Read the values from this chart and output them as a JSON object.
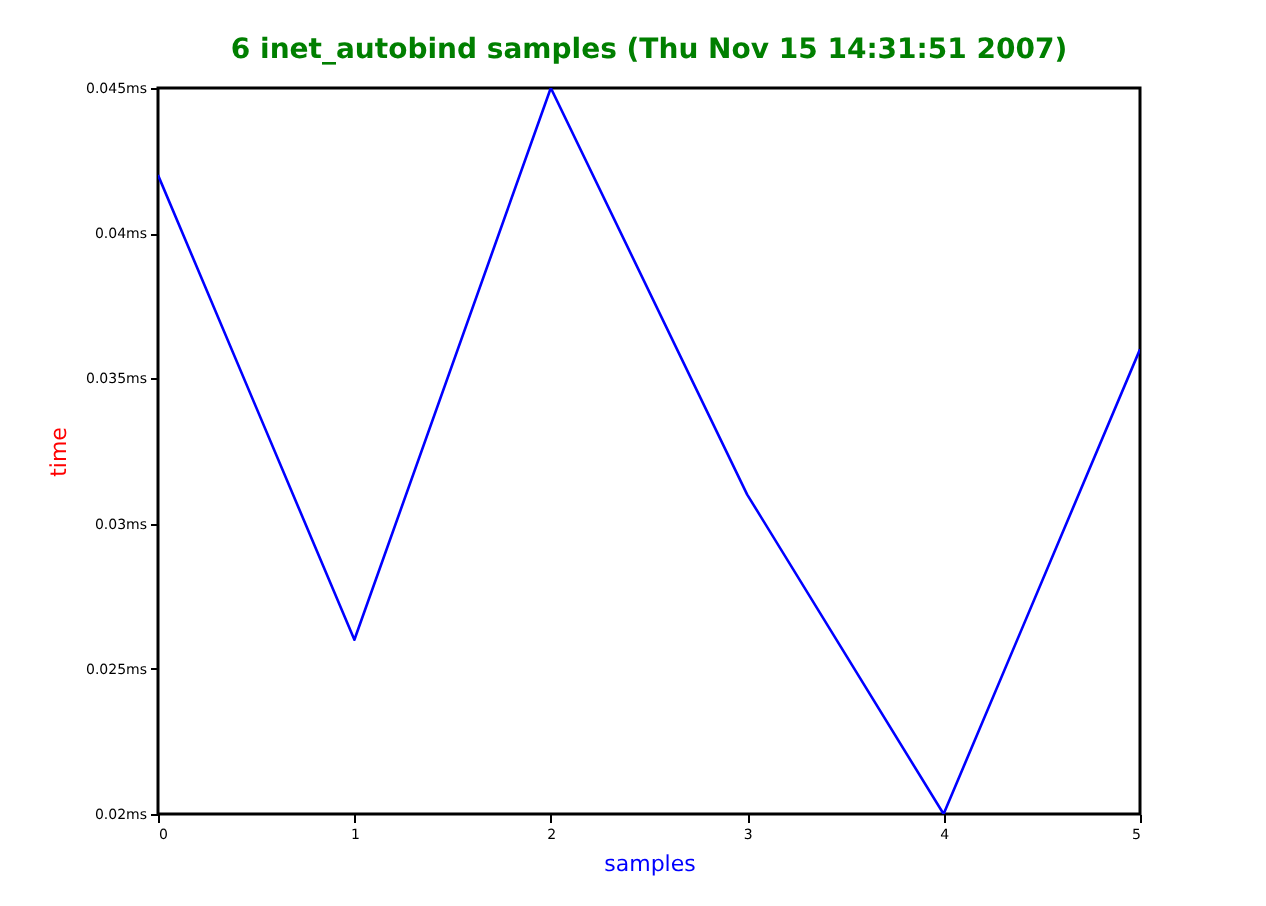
{
  "chart_data": {
    "type": "line",
    "title": "6 inet_autobind samples (Thu Nov 15 14:31:51 2007)",
    "xlabel": "samples",
    "ylabel": "time",
    "x": [
      0,
      1,
      2,
      3,
      4,
      5
    ],
    "series": [
      {
        "color": "#0000ff",
        "values": [
          0.042,
          0.026,
          0.045,
          0.031,
          0.02,
          0.036
        ]
      }
    ],
    "xlim": [
      0,
      5
    ],
    "xticks": [
      0,
      1,
      2,
      3,
      4,
      5
    ],
    "ylim": [
      0.02,
      0.045
    ],
    "yticks": [
      {
        "value": 0.02,
        "label": "0.02ms"
      },
      {
        "value": 0.025,
        "label": "0.025ms"
      },
      {
        "value": 0.03,
        "label": "0.03ms"
      },
      {
        "value": 0.035,
        "label": "0.035ms"
      },
      {
        "value": 0.04,
        "label": "0.04ms"
      },
      {
        "value": 0.045,
        "label": "0.045ms"
      }
    ],
    "grid": false,
    "marker": "none",
    "line_style": "solid"
  }
}
